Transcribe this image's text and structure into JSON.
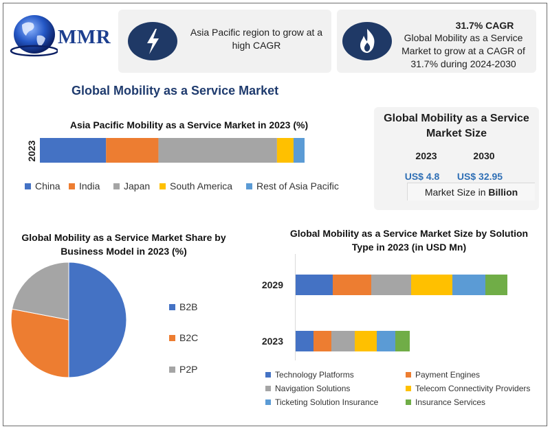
{
  "logo": {
    "text": "MMR"
  },
  "card_region": {
    "text": "Asia Pacific region to grow at a high CAGR",
    "icon": "lightning-bolt-icon"
  },
  "card_cagr": {
    "title": "31.7% CAGR",
    "text": "Global Mobility as a Service Market to grow at a CAGR of 31.7% during 2024-2030",
    "icon": "flame-icon"
  },
  "main_title": "Global Mobility as a Service Market",
  "market_size": {
    "title": "Global Mobility as a Service Market Size",
    "year1": "2023",
    "year2": "2030",
    "value1": "US$ 4.8",
    "value2": "US$ 32.95",
    "unit_prefix": "Market Size in ",
    "unit_bold": "Billion",
    "value_color": "#2f6fb5"
  },
  "colors": {
    "blue": "#4472c4",
    "orange": "#ed7d31",
    "gray": "#a5a5a5",
    "yellow": "#ffc000",
    "light_blue": "#5b9bd5",
    "green": "#70ad47",
    "card_bg": "#f1f1f1",
    "title_navy": "#1f3b6e"
  },
  "chart_data": [
    {
      "type": "bar",
      "orientation": "horizontal",
      "stacked": true,
      "title": "Asia Pacific Mobility as a Service Market in 2023 (%)",
      "categories": [
        "2023"
      ],
      "series": [
        {
          "name": "China",
          "values": [
            24
          ]
        },
        {
          "name": "India",
          "values": [
            19
          ]
        },
        {
          "name": "Japan",
          "values": [
            43
          ]
        },
        {
          "name": "South America",
          "values": [
            6
          ]
        },
        {
          "name": "Rest of Asia Pacific",
          "values": [
            4
          ]
        }
      ],
      "legend": "bottom",
      "grid": false
    },
    {
      "type": "pie",
      "title": "Global Mobility as a Service Market Share by Business Model in 2023 (%)",
      "labels": [
        "B2B",
        "B2C",
        "P2P"
      ],
      "values": [
        50,
        28,
        22
      ],
      "legend": "right"
    },
    {
      "type": "bar",
      "orientation": "horizontal",
      "stacked": true,
      "title": "Global Mobility as a Service Market Size by Solution Type in 2023 (in USD Mn)",
      "categories": [
        "2029",
        "2023"
      ],
      "series": [
        {
          "name": "Technology Platforms",
          "values": [
            54,
            26
          ]
        },
        {
          "name": "Payment Engines",
          "values": [
            56,
            26
          ]
        },
        {
          "name": "Navigation Solutions",
          "values": [
            58,
            34
          ]
        },
        {
          "name": "Telecom Connectivity Providers",
          "values": [
            60,
            32
          ]
        },
        {
          "name": "Ticketing Solution Insurance",
          "values": [
            48,
            27
          ]
        },
        {
          "name": "Insurance Services",
          "values": [
            32,
            21
          ]
        }
      ],
      "legend": "bottom",
      "grid": false
    }
  ]
}
